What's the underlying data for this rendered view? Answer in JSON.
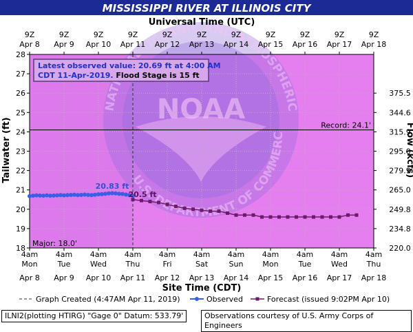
{
  "header": {
    "title": "MISSISSIPPI RIVER AT ILLINOIS CITY"
  },
  "footer": {
    "left": "ILNI2(plotting HTIRG) \"Gage 0\" Datum: 533.79'",
    "right": "Observations courtesy of U.S. Army Corps of Engineers"
  },
  "chart_data": {
    "type": "line",
    "top_axis_title": "Universal Time (UTC)",
    "top_ticks": [
      {
        "time": "9Z",
        "date": "Apr 8"
      },
      {
        "time": "9Z",
        "date": "Apr 9"
      },
      {
        "time": "9Z",
        "date": "Apr 10"
      },
      {
        "time": "9Z",
        "date": "Apr 11"
      },
      {
        "time": "9Z",
        "date": "Apr 12"
      },
      {
        "time": "9Z",
        "date": "Apr 13"
      },
      {
        "time": "9Z",
        "date": "Apr 14"
      },
      {
        "time": "9Z",
        "date": "Apr 15"
      },
      {
        "time": "9Z",
        "date": "Apr 16"
      },
      {
        "time": "9Z",
        "date": "Apr 17"
      },
      {
        "time": "9Z",
        "date": "Apr 18"
      }
    ],
    "bottom_axis_title": "Site Time (CDT)",
    "bottom_ticks": [
      {
        "time": "4am",
        "day": "Mon"
      },
      {
        "time": "4am",
        "day": "Tue"
      },
      {
        "time": "4am",
        "day": "Wed"
      },
      {
        "time": "4am",
        "day": "Thu"
      },
      {
        "time": "4am",
        "day": "Fri"
      },
      {
        "time": "4am",
        "day": "Sat"
      },
      {
        "time": "4am",
        "day": "Sun"
      },
      {
        "time": "4am",
        "day": "Mon"
      },
      {
        "time": "4am",
        "day": "Tue"
      },
      {
        "time": "4am",
        "day": "Wed"
      },
      {
        "time": "4am",
        "day": "Thu"
      }
    ],
    "bottom_dates": [
      "Apr 8",
      "Apr 9",
      "Apr 10",
      "Apr 11",
      "Apr 12",
      "Apr 13",
      "Apr 14",
      "Apr 15",
      "Apr 16",
      "Apr 17",
      "Apr 18"
    ],
    "y_left_label": "Tailwater (ft)",
    "y_left_ticks": [
      "18",
      "19",
      "20",
      "21",
      "22",
      "23",
      "24",
      "25",
      "26",
      "27",
      "28"
    ],
    "ylim": [
      18,
      28
    ],
    "y_right_label": "Flow (kcfs)",
    "y_right_ticks": [
      {
        "stage": 18.0,
        "label": "220.0"
      },
      {
        "stage": 19.0,
        "label": "234.8"
      },
      {
        "stage": 20.0,
        "label": "249.8"
      },
      {
        "stage": 21.0,
        "label": "265.0"
      },
      {
        "stage": 22.0,
        "label": "279.9"
      },
      {
        "stage": 23.0,
        "label": "295.0"
      },
      {
        "stage": 24.0,
        "label": "315.9"
      },
      {
        "stage": 25.0,
        "label": "344.6"
      },
      {
        "stage": 26.0,
        "label": "375.5"
      }
    ],
    "x_range_days": [
      0,
      10
    ],
    "record_stage": 24.1,
    "record_label": "Record: 24.1'",
    "major_label": "Major: 18.0'",
    "info_box": {
      "line1": "Latest observed value: 20.69 ft at 4:00 AM",
      "line2_prefix": "CDT 11-Apr-2019.",
      "line2_suffix": "Flood Stage is 15 ft"
    },
    "annotations": {
      "observed_peak": "20.83 ft",
      "forecast_start": "20.5 ft"
    },
    "graph_created_day": 3.0,
    "series": [
      {
        "name": "Observed",
        "color": "#3a5fe5",
        "x": [
          0.0,
          0.1,
          0.2,
          0.3,
          0.4,
          0.5,
          0.6,
          0.7,
          0.8,
          0.9,
          1.0,
          1.1,
          1.2,
          1.3,
          1.4,
          1.5,
          1.6,
          1.7,
          1.8,
          1.9,
          2.0,
          2.1,
          2.2,
          2.3,
          2.4,
          2.5,
          2.6,
          2.7,
          2.8,
          2.9,
          3.0
        ],
        "y": [
          20.68,
          20.7,
          20.72,
          20.71,
          20.7,
          20.72,
          20.7,
          20.71,
          20.72,
          20.73,
          20.72,
          20.73,
          20.74,
          20.75,
          20.73,
          20.74,
          20.76,
          20.74,
          20.73,
          20.75,
          20.77,
          20.78,
          20.8,
          20.82,
          20.83,
          20.82,
          20.8,
          20.79,
          20.76,
          20.73,
          20.69
        ]
      },
      {
        "name": "Forecast (issued 9:02PM Apr 10)",
        "color": "#6a1b6a",
        "x": [
          3.0,
          3.25,
          3.5,
          3.75,
          4.0,
          4.25,
          4.5,
          4.75,
          5.0,
          5.25,
          5.5,
          5.75,
          6.0,
          6.25,
          6.5,
          6.75,
          7.0,
          7.25,
          7.5,
          7.75,
          8.0,
          8.25,
          8.5,
          8.75,
          9.0,
          9.25,
          9.5
        ],
        "y": [
          20.5,
          20.45,
          20.4,
          20.35,
          20.25,
          20.15,
          20.05,
          20.0,
          19.95,
          19.9,
          19.9,
          19.8,
          19.7,
          19.7,
          19.7,
          19.6,
          19.6,
          19.6,
          19.6,
          19.6,
          19.6,
          19.6,
          19.6,
          19.6,
          19.6,
          19.7,
          19.7
        ]
      }
    ],
    "legend": {
      "graph_created": "Graph Created (4:47AM Apr 11, 2019)",
      "observed": "Observed",
      "forecast": "Forecast (issued 9:02PM Apr 10)"
    }
  },
  "colors": {
    "plot_bg": "#e57ff0",
    "plot_bg_past": "#d677ea",
    "observed": "#3a5fe5",
    "forecast": "#6a1b6a",
    "title_bg": "#1c2a96",
    "watermark": "#8f6bd9"
  },
  "watermark": {
    "top_text": "NATIONAL OCEANIC AND ATMOSPHERIC ADMINISTRATION",
    "bottom_text": "U.S. DEPARTMENT OF COMMERCE",
    "center_text": "NOAA"
  }
}
